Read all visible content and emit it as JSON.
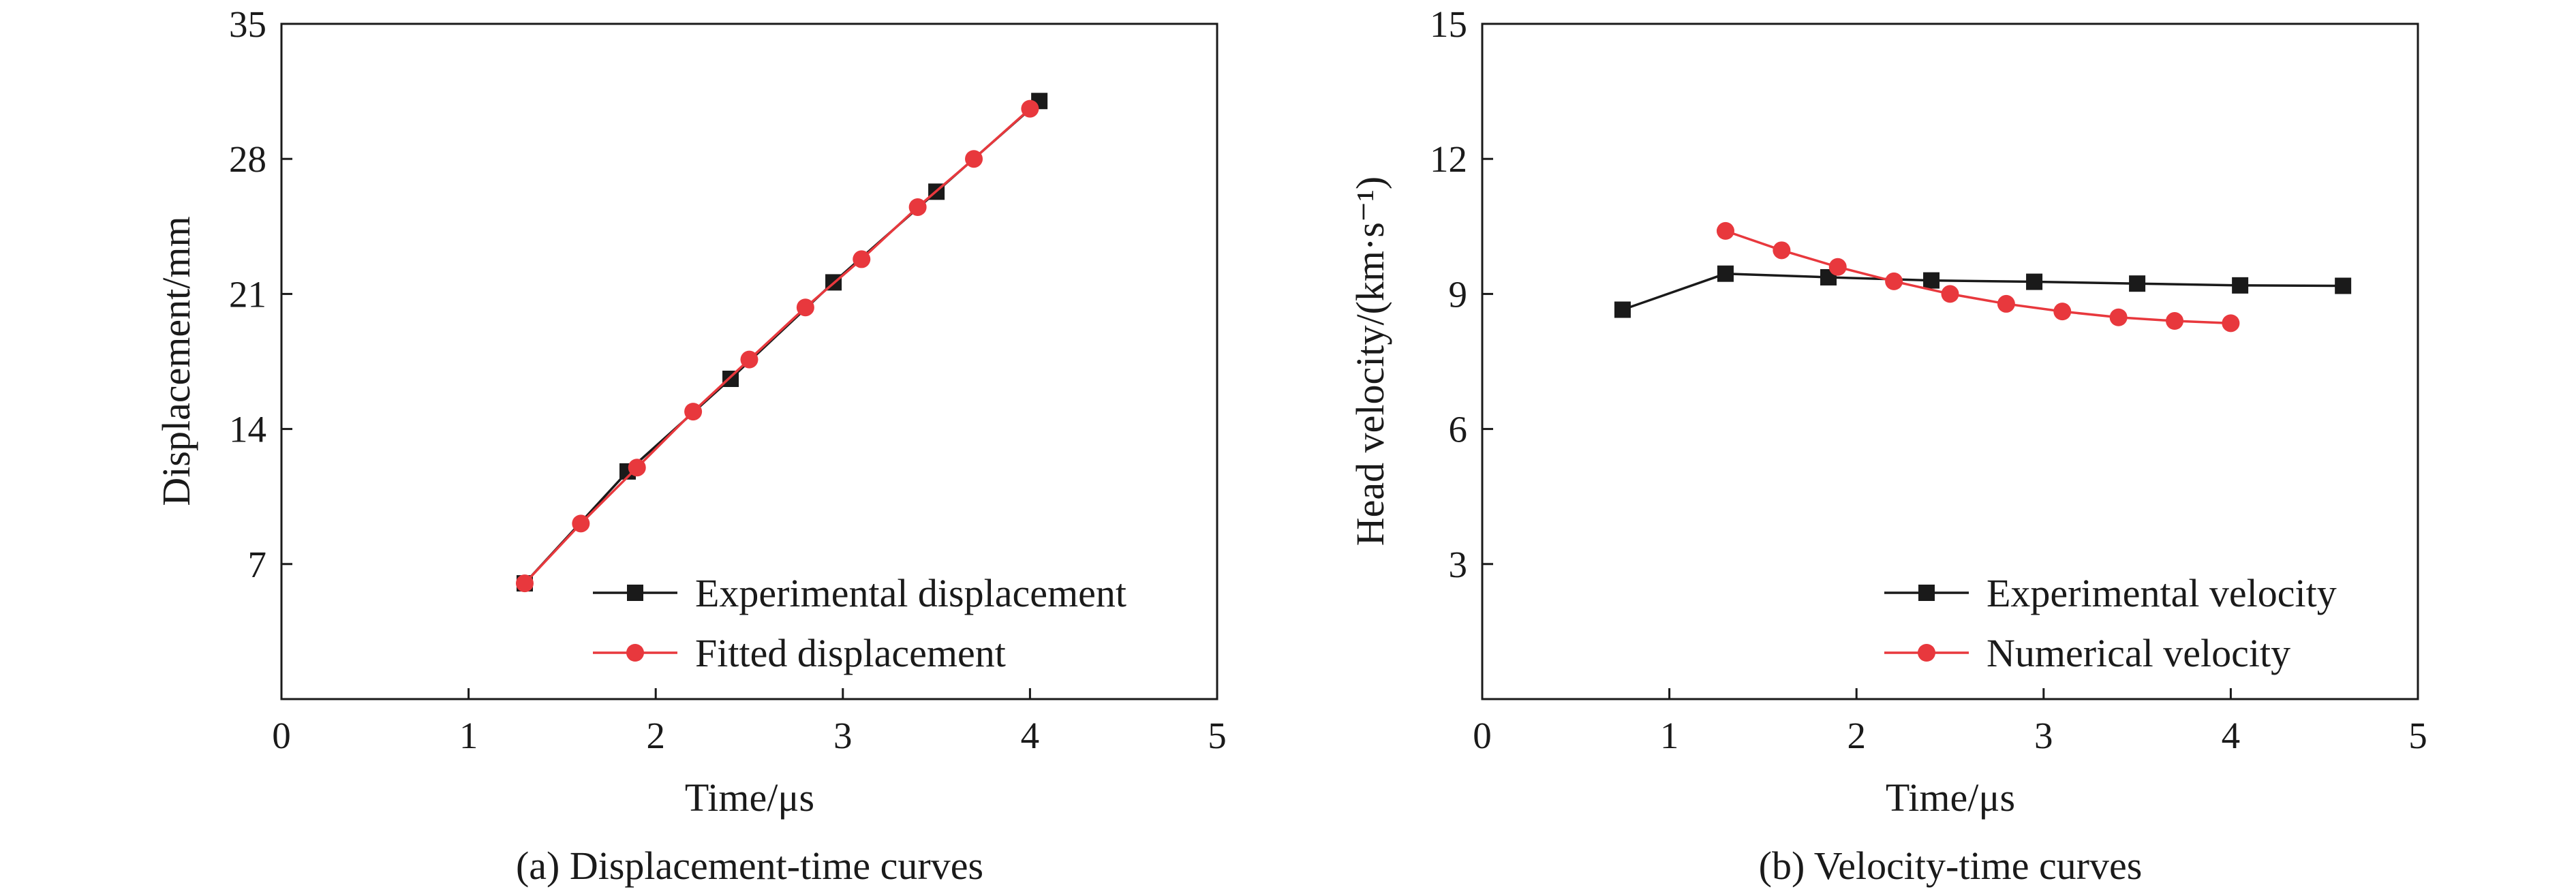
{
  "chart_data": [
    {
      "type": "line",
      "xlabel": "Time/μs",
      "ylabel": "Displacement/mm",
      "caption": "(a) Displacement-time curves",
      "xlim": [
        0,
        5
      ],
      "ylim": [
        0,
        35
      ],
      "xticks": [
        0,
        1,
        2,
        3,
        4,
        5
      ],
      "yticks": [
        7,
        14,
        21,
        28,
        35
      ],
      "grid": false,
      "legend_position": "bottom-right",
      "series": [
        {
          "name": "Experimental displacement",
          "color": "#1a1a1a",
          "marker": "square",
          "x": [
            1.3,
            1.85,
            2.4,
            2.95,
            3.5,
            4.05
          ],
          "y": [
            6.0,
            11.8,
            16.6,
            21.6,
            26.3,
            31.0
          ]
        },
        {
          "name": "Fitted displacement",
          "color": "#e8383d",
          "marker": "circle",
          "x": [
            1.3,
            1.6,
            1.9,
            2.2,
            2.5,
            2.8,
            3.1,
            3.4,
            3.7,
            4.0
          ],
          "y": [
            6.0,
            9.1,
            12.0,
            14.9,
            17.6,
            20.3,
            22.8,
            25.5,
            28.0,
            30.6
          ]
        }
      ]
    },
    {
      "type": "line",
      "xlabel": "Time/μs",
      "ylabel": "Head velocity/(km·s⁻¹)",
      "caption": "(b) Velocity-time curves",
      "xlim": [
        0,
        5
      ],
      "ylim": [
        0,
        15
      ],
      "xticks": [
        0,
        1,
        2,
        3,
        4,
        5
      ],
      "yticks": [
        3,
        6,
        9,
        12,
        15
      ],
      "grid": false,
      "legend_position": "bottom-right",
      "series": [
        {
          "name": "Experimental velocity",
          "color": "#1a1a1a",
          "marker": "square",
          "x": [
            0.75,
            1.3,
            1.85,
            2.4,
            2.95,
            3.5,
            4.05,
            4.6
          ],
          "y": [
            8.65,
            9.45,
            9.37,
            9.3,
            9.27,
            9.23,
            9.19,
            9.18
          ]
        },
        {
          "name": "Numerical velocity",
          "color": "#e8383d",
          "marker": "circle",
          "x": [
            1.3,
            1.6,
            1.9,
            2.2,
            2.5,
            2.8,
            3.1,
            3.4,
            3.7,
            4.0
          ],
          "y": [
            10.4,
            9.97,
            9.6,
            9.28,
            9.0,
            8.78,
            8.61,
            8.48,
            8.4,
            8.35
          ]
        }
      ]
    }
  ]
}
